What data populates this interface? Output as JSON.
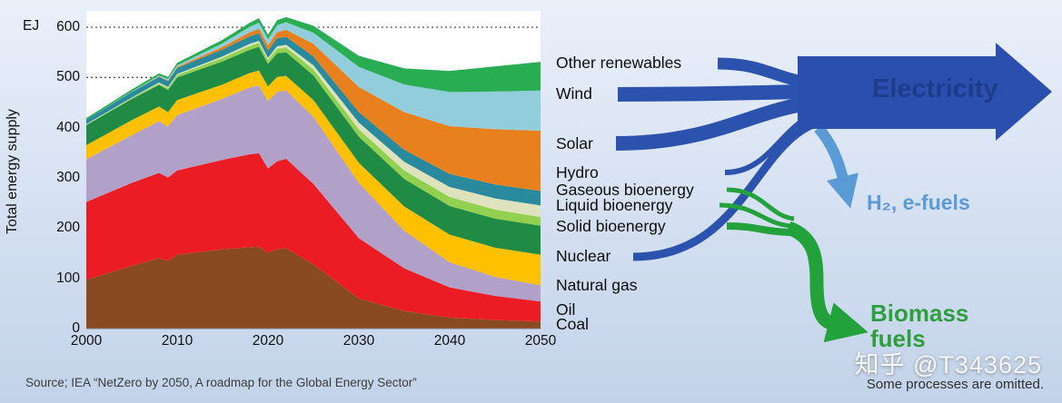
{
  "chart": {
    "unit_label": "EJ",
    "y_axis_title": "Total energy supply"
  },
  "chart_data": {
    "type": "area",
    "stacked": true,
    "title": "",
    "xlabel": "",
    "ylabel": "Total energy supply",
    "unit": "EJ",
    "ylim": [
      0,
      620
    ],
    "gridlines": [
      500,
      600
    ],
    "y_ticks": [
      0,
      100,
      200,
      300,
      400,
      500,
      600
    ],
    "x_ticks": [
      2000,
      2010,
      2020,
      2030,
      2040,
      2050
    ],
    "x": [
      2000,
      2005,
      2008,
      2009,
      2010,
      2015,
      2018,
      2019,
      2020,
      2021,
      2022,
      2025,
      2030,
      2035,
      2040,
      2045,
      2050
    ],
    "series": [
      {
        "name": "Coal",
        "color": "#8a4a21",
        "values": [
          97,
          125,
          140,
          135,
          147,
          158,
          162,
          163,
          151,
          158,
          160,
          128,
          60,
          35,
          22,
          17,
          14
        ]
      },
      {
        "name": "Oil",
        "color": "#ec1c24",
        "values": [
          155,
          165,
          170,
          166,
          168,
          178,
          185,
          186,
          168,
          175,
          178,
          160,
          120,
          85,
          60,
          48,
          40
        ]
      },
      {
        "name": "Natural gas",
        "color": "#b1a0c7",
        "values": [
          85,
          95,
          103,
          101,
          110,
          122,
          133,
          135,
          134,
          138,
          136,
          134,
          110,
          75,
          50,
          38,
          32
        ]
      },
      {
        "name": "Nuclear",
        "color": "#ffc000",
        "values": [
          28,
          30,
          29,
          29,
          30,
          28,
          29,
          30,
          29,
          30,
          29,
          33,
          40,
          48,
          55,
          58,
          61
        ]
      },
      {
        "name": "Solid bioenergy",
        "color": "#1f8b44",
        "values": [
          40,
          42,
          43,
          44,
          45,
          46,
          46,
          47,
          45,
          47,
          47,
          49,
          52,
          55,
          57,
          58,
          58
        ]
      },
      {
        "name": "Liquid bioenergy",
        "color": "#92d050",
        "values": [
          1,
          2,
          3,
          4,
          5,
          7,
          8,
          8,
          8,
          9,
          10,
          12,
          15,
          17,
          18,
          18,
          17
        ]
      },
      {
        "name": "Gaseous bioenergy",
        "color": "#dfe3bd",
        "values": [
          1,
          1,
          2,
          2,
          2,
          3,
          4,
          4,
          4,
          5,
          5,
          8,
          13,
          17,
          20,
          22,
          23
        ]
      },
      {
        "name": "Hydro",
        "color": "#2a8a9d",
        "values": [
          9,
          11,
          11,
          12,
          12,
          14,
          15,
          15,
          15,
          16,
          16,
          18,
          21,
          24,
          26,
          28,
          29
        ]
      },
      {
        "name": "Solar",
        "color": "#e8801e",
        "values": [
          0,
          0,
          1,
          1,
          2,
          5,
          8,
          9,
          10,
          12,
          14,
          25,
          50,
          75,
          95,
          110,
          120
        ]
      },
      {
        "name": "Wind",
        "color": "#92cddc",
        "values": [
          0,
          1,
          2,
          3,
          3,
          7,
          11,
          12,
          12,
          14,
          15,
          22,
          40,
          55,
          68,
          75,
          80
        ]
      },
      {
        "name": "Other renewables",
        "color": "#29ad52",
        "values": [
          3,
          4,
          4,
          4,
          5,
          7,
          8,
          9,
          9,
          10,
          10,
          14,
          22,
          32,
          42,
          50,
          57
        ]
      }
    ]
  },
  "sankey": {
    "sources": [
      "Other renewables",
      "Wind",
      "Solar",
      "Hydro",
      "Gaseous bioenergy",
      "Liquid bioenergy",
      "Solid bioenergy",
      "Nuclear",
      "Natural gas",
      "Oil",
      "Coal"
    ],
    "outputs": [
      {
        "label": "Electricity",
        "color": "#1e3c8c"
      },
      {
        "label": "H₂, e-fuels",
        "color": "#5b9bd5"
      },
      {
        "label": "Biomass fuels",
        "color": "#2f9e3f"
      }
    ],
    "colors": {
      "flow_blue": "#2b52ad",
      "arrow_blue": "#2a4fae",
      "flow_light_blue": "#5b9bd5",
      "flow_green": "#23a13a"
    }
  },
  "footer": {
    "source": "Source; IEA “NetZero by 2050, A roadmap for the Global Energy Sector”",
    "note": "Some processes are omitted."
  },
  "watermark": "知乎 @T343625"
}
